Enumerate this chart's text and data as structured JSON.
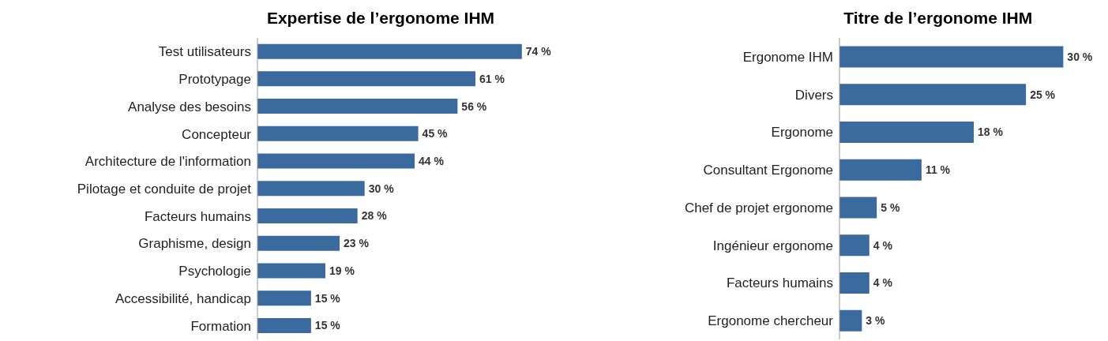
{
  "chart_data": [
    {
      "type": "bar",
      "orientation": "horizontal",
      "title": "Expertise de l’ergonome IHM",
      "categories": [
        "Test utilisateurs",
        "Prototypage",
        "Analyse des besoins",
        "Concepteur",
        "Architecture de l'information",
        "Pilotage et conduite de projet",
        "Facteurs humains",
        "Graphisme, design",
        "Psychologie",
        "Accessibilité, handicap",
        "Formation"
      ],
      "values": [
        74,
        61,
        56,
        45,
        44,
        30,
        28,
        23,
        19,
        15,
        15
      ],
      "value_labels": [
        "74 %",
        "61 %",
        "56 %",
        "45 %",
        "44 %",
        "30 %",
        "28 %",
        "23 %",
        "19 %",
        "15 %",
        "15 %"
      ],
      "color": "#3a6a9e",
      "tick_labels": "y",
      "grid": false,
      "legend": false
    },
    {
      "type": "bar",
      "orientation": "horizontal",
      "title": "Titre de l’ergonome IHM",
      "categories": [
        "Ergonome IHM",
        "Divers",
        "Ergonome",
        "Consultant Ergonome",
        "Chef de projet ergonome",
        "Ingénieur ergonome",
        "Facteurs humains",
        "Ergonome chercheur"
      ],
      "values": [
        30,
        25,
        18,
        11,
        5,
        4,
        4,
        3
      ],
      "value_labels": [
        "30 %",
        "25 %",
        "18 %",
        "11 %",
        "5 %",
        "4 %",
        "4 %",
        "3 %"
      ],
      "color": "#3a6a9e",
      "tick_labels": "y",
      "grid": false,
      "legend": false
    }
  ]
}
